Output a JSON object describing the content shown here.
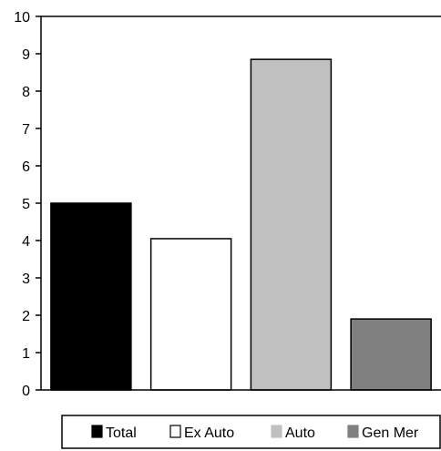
{
  "chart_data": {
    "type": "bar",
    "categories": [
      "Total",
      "Ex Auto",
      "Auto",
      "Gen Mer"
    ],
    "values": [
      5.0,
      4.05,
      8.85,
      1.9
    ],
    "colors": [
      "#000000",
      "#ffffff",
      "#c0c0c0",
      "#808080"
    ],
    "title": "",
    "xlabel": "",
    "ylabel": "",
    "ylim": [
      0,
      10
    ],
    "yticks": [
      "0",
      "1",
      "2",
      "3",
      "4",
      "5",
      "6",
      "7",
      "8",
      "9",
      "10"
    ],
    "grid": false,
    "legend": {
      "position": "bottom",
      "entries": [
        "Total",
        "Ex Auto",
        "Auto",
        "Gen Mer"
      ]
    }
  }
}
